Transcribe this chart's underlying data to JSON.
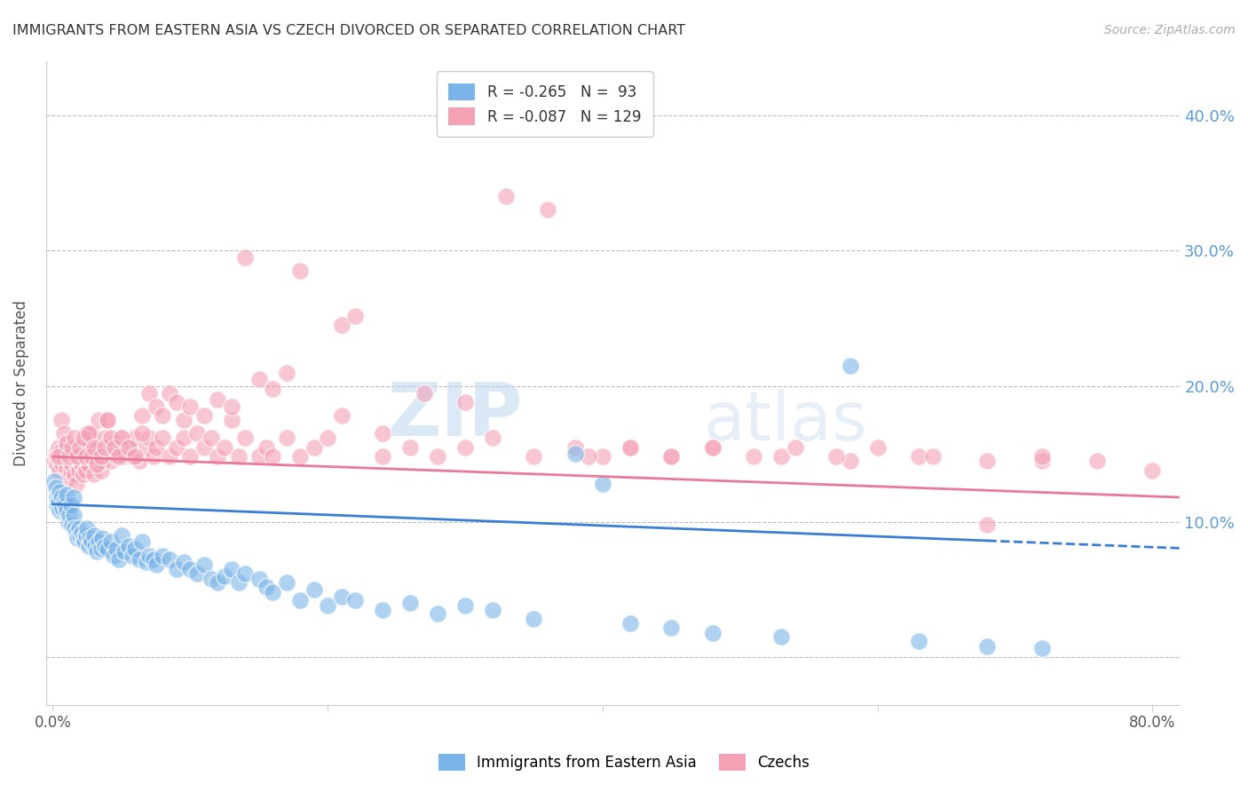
{
  "title": "IMMIGRANTS FROM EASTERN ASIA VS CZECH DIVORCED OR SEPARATED CORRELATION CHART",
  "source": "Source: ZipAtlas.com",
  "ylabel": "Divorced or Separated",
  "legend_label1": "Immigrants from Eastern Asia",
  "legend_label2": "Czechs",
  "watermark": "ZIPatlas",
  "blue_color": "#7ab4e8",
  "pink_color": "#f4a0b5",
  "blue_line_color": "#3a7fd5",
  "pink_line_color": "#e87a97",
  "background_color": "#ffffff",
  "grid_color": "#bbbbbb",
  "title_color": "#333333",
  "source_color": "#aaaaaa",
  "axis_label_color": "#555555",
  "right_tick_color": "#5b9bd5",
  "xlim": [
    -0.005,
    0.82
  ],
  "ylim": [
    -0.035,
    0.44
  ],
  "x_ticks": [
    0.0,
    0.2,
    0.4,
    0.6,
    0.8
  ],
  "x_tick_labels": [
    "0.0%",
    "",
    "",
    "",
    "80.0%"
  ],
  "y_ticks": [
    0.0,
    0.1,
    0.2,
    0.3,
    0.4
  ],
  "y_tick_labels": [
    "",
    "10.0%",
    "20.0%",
    "30.0%",
    "40.0%"
  ],
  "blue_scatter_x": [
    0.001,
    0.002,
    0.003,
    0.003,
    0.004,
    0.005,
    0.005,
    0.006,
    0.007,
    0.008,
    0.009,
    0.01,
    0.01,
    0.011,
    0.012,
    0.013,
    0.014,
    0.015,
    0.015,
    0.016,
    0.017,
    0.018,
    0.019,
    0.02,
    0.021,
    0.022,
    0.023,
    0.024,
    0.025,
    0.026,
    0.027,
    0.028,
    0.03,
    0.031,
    0.032,
    0.033,
    0.035,
    0.036,
    0.038,
    0.04,
    0.042,
    0.044,
    0.046,
    0.048,
    0.05,
    0.052,
    0.055,
    0.058,
    0.06,
    0.063,
    0.065,
    0.068,
    0.07,
    0.073,
    0.075,
    0.08,
    0.085,
    0.09,
    0.095,
    0.1,
    0.105,
    0.11,
    0.115,
    0.12,
    0.125,
    0.13,
    0.135,
    0.14,
    0.15,
    0.155,
    0.16,
    0.17,
    0.18,
    0.19,
    0.2,
    0.21,
    0.22,
    0.24,
    0.26,
    0.28,
    0.3,
    0.32,
    0.35,
    0.38,
    0.4,
    0.42,
    0.45,
    0.48,
    0.53,
    0.58,
    0.63,
    0.68,
    0.72
  ],
  "blue_scatter_y": [
    0.13,
    0.125,
    0.118,
    0.112,
    0.115,
    0.122,
    0.108,
    0.118,
    0.11,
    0.115,
    0.112,
    0.108,
    0.12,
    0.1,
    0.105,
    0.112,
    0.098,
    0.105,
    0.118,
    0.095,
    0.092,
    0.088,
    0.095,
    0.09,
    0.092,
    0.088,
    0.085,
    0.09,
    0.095,
    0.082,
    0.088,
    0.085,
    0.09,
    0.082,
    0.078,
    0.085,
    0.08,
    0.088,
    0.082,
    0.08,
    0.085,
    0.075,
    0.08,
    0.072,
    0.09,
    0.078,
    0.082,
    0.075,
    0.08,
    0.072,
    0.085,
    0.07,
    0.075,
    0.072,
    0.068,
    0.075,
    0.072,
    0.065,
    0.07,
    0.065,
    0.062,
    0.068,
    0.058,
    0.055,
    0.06,
    0.065,
    0.055,
    0.062,
    0.058,
    0.052,
    0.048,
    0.055,
    0.042,
    0.05,
    0.038,
    0.045,
    0.042,
    0.035,
    0.04,
    0.032,
    0.038,
    0.035,
    0.028,
    0.15,
    0.128,
    0.025,
    0.022,
    0.018,
    0.015,
    0.215,
    0.012,
    0.008,
    0.007
  ],
  "pink_scatter_x": [
    0.001,
    0.002,
    0.003,
    0.003,
    0.004,
    0.005,
    0.005,
    0.006,
    0.007,
    0.008,
    0.009,
    0.01,
    0.01,
    0.011,
    0.012,
    0.013,
    0.014,
    0.015,
    0.015,
    0.016,
    0.017,
    0.018,
    0.019,
    0.02,
    0.021,
    0.022,
    0.023,
    0.024,
    0.025,
    0.026,
    0.027,
    0.028,
    0.029,
    0.03,
    0.031,
    0.032,
    0.033,
    0.035,
    0.036,
    0.038,
    0.04,
    0.042,
    0.044,
    0.046,
    0.048,
    0.05,
    0.052,
    0.055,
    0.058,
    0.06,
    0.063,
    0.065,
    0.068,
    0.07,
    0.073,
    0.075,
    0.08,
    0.085,
    0.09,
    0.095,
    0.1,
    0.105,
    0.11,
    0.115,
    0.12,
    0.125,
    0.13,
    0.135,
    0.14,
    0.15,
    0.155,
    0.16,
    0.17,
    0.18,
    0.19,
    0.2,
    0.21,
    0.22,
    0.24,
    0.26,
    0.28,
    0.3,
    0.32,
    0.35,
    0.38,
    0.4,
    0.42,
    0.45,
    0.48,
    0.53,
    0.58,
    0.63,
    0.68,
    0.72,
    0.004,
    0.006,
    0.008,
    0.01,
    0.012,
    0.014,
    0.016,
    0.018,
    0.02,
    0.022,
    0.024,
    0.026,
    0.028,
    0.03,
    0.032,
    0.035,
    0.038,
    0.04,
    0.042,
    0.045,
    0.048,
    0.05,
    0.055,
    0.06,
    0.065,
    0.07,
    0.075,
    0.08,
    0.085,
    0.09,
    0.095,
    0.1,
    0.11,
    0.12,
    0.13,
    0.14,
    0.15,
    0.16,
    0.17,
    0.18,
    0.21,
    0.24,
    0.27,
    0.3,
    0.33,
    0.36,
    0.39,
    0.42,
    0.45,
    0.48,
    0.51,
    0.54,
    0.57,
    0.6,
    0.64,
    0.68,
    0.72,
    0.76,
    0.8
  ],
  "pink_scatter_y": [
    0.145,
    0.15,
    0.148,
    0.142,
    0.155,
    0.145,
    0.138,
    0.152,
    0.142,
    0.148,
    0.145,
    0.14,
    0.155,
    0.132,
    0.145,
    0.138,
    0.142,
    0.148,
    0.155,
    0.135,
    0.128,
    0.142,
    0.138,
    0.145,
    0.142,
    0.135,
    0.148,
    0.138,
    0.165,
    0.142,
    0.155,
    0.165,
    0.148,
    0.135,
    0.145,
    0.155,
    0.175,
    0.138,
    0.145,
    0.162,
    0.175,
    0.145,
    0.158,
    0.148,
    0.155,
    0.162,
    0.148,
    0.155,
    0.148,
    0.162,
    0.145,
    0.178,
    0.155,
    0.162,
    0.148,
    0.155,
    0.162,
    0.148,
    0.155,
    0.162,
    0.148,
    0.165,
    0.155,
    0.162,
    0.148,
    0.155,
    0.175,
    0.148,
    0.162,
    0.148,
    0.155,
    0.148,
    0.162,
    0.148,
    0.155,
    0.162,
    0.245,
    0.252,
    0.148,
    0.155,
    0.148,
    0.155,
    0.162,
    0.148,
    0.155,
    0.148,
    0.155,
    0.148,
    0.155,
    0.148,
    0.145,
    0.148,
    0.098,
    0.145,
    0.148,
    0.175,
    0.165,
    0.158,
    0.148,
    0.155,
    0.162,
    0.148,
    0.155,
    0.162,
    0.148,
    0.165,
    0.148,
    0.155,
    0.142,
    0.148,
    0.155,
    0.175,
    0.162,
    0.155,
    0.148,
    0.162,
    0.155,
    0.148,
    0.165,
    0.195,
    0.185,
    0.178,
    0.195,
    0.188,
    0.175,
    0.185,
    0.178,
    0.19,
    0.185,
    0.295,
    0.205,
    0.198,
    0.21,
    0.285,
    0.178,
    0.165,
    0.195,
    0.188,
    0.34,
    0.33,
    0.148,
    0.155,
    0.148,
    0.155,
    0.148,
    0.155,
    0.148,
    0.155,
    0.148,
    0.145,
    0.148,
    0.145,
    0.138
  ],
  "blue_trend_x0": 0.0,
  "blue_trend_y0": 0.113,
  "blue_trend_x1": 0.68,
  "blue_trend_y1": 0.086,
  "blue_trend_x2": 0.82,
  "blue_trend_y2": 0.08,
  "pink_trend_x0": 0.0,
  "pink_trend_y0": 0.148,
  "pink_trend_x1": 0.82,
  "pink_trend_y1": 0.118
}
